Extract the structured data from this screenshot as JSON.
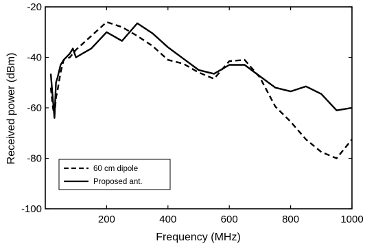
{
  "chart_data": {
    "type": "line",
    "title": "",
    "xlabel": "Frequency (MHz)",
    "ylabel": "Received power (dBm)",
    "xlim": [
      0,
      1000
    ],
    "ylim": [
      -100,
      -20
    ],
    "x_ticks": [
      200,
      400,
      600,
      800,
      1000
    ],
    "y_ticks": [
      -20,
      -40,
      -60,
      -80,
      -100
    ],
    "grid": false,
    "legend_position": "bottom-left",
    "series": [
      {
        "name": "60 cm dipole",
        "style": "dashed",
        "color": "#000000",
        "x": [
          18,
          25,
          30,
          35,
          40,
          50,
          60,
          80,
          100,
          150,
          200,
          250,
          300,
          350,
          400,
          450,
          500,
          550,
          600,
          650,
          700,
          750,
          800,
          850,
          900,
          950,
          1000
        ],
        "y": [
          -52,
          -60,
          -63,
          -56,
          -53,
          -46,
          -41,
          -40,
          -37,
          -31.5,
          -26,
          -28,
          -31.5,
          -35.5,
          -41,
          -42.5,
          -46,
          -48.5,
          -41.5,
          -41,
          -48,
          -59.5,
          -65.5,
          -72.5,
          -77.5,
          -80,
          -72.5
        ]
      },
      {
        "name": "Proposed ant.",
        "style": "solid",
        "color": "#000000",
        "x": [
          18,
          25,
          30,
          35,
          40,
          50,
          60,
          80,
          90,
          100,
          150,
          200,
          250,
          300,
          350,
          400,
          450,
          500,
          550,
          600,
          650,
          700,
          750,
          800,
          850,
          900,
          950,
          1000
        ],
        "y": [
          -46.5,
          -57,
          -64,
          -50,
          -48,
          -43,
          -41,
          -38.5,
          -36.5,
          -40,
          -36.5,
          -30,
          -33.5,
          -26.5,
          -30.5,
          -36,
          -40.5,
          -45,
          -46.5,
          -43,
          -43,
          -47.5,
          -52,
          -53.5,
          -51.5,
          -54.5,
          -61,
          -60
        ]
      }
    ]
  }
}
